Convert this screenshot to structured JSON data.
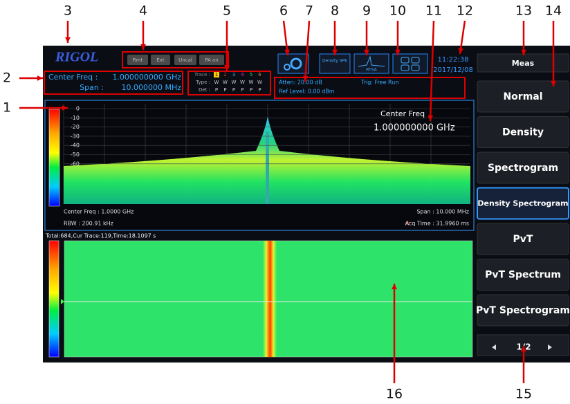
{
  "callouts": [
    "1",
    "2",
    "3",
    "4",
    "5",
    "6",
    "7",
    "8",
    "9",
    "10",
    "11",
    "12",
    "13",
    "14",
    "15",
    "16"
  ],
  "header": {
    "logo": "RIGOL",
    "status_buttons": [
      "Rmt",
      "Ext",
      "Uncal",
      "PA on"
    ],
    "center_freq_label": "Center Freq :",
    "center_freq_value": "1.000000000 GHz",
    "span_label": "Span :",
    "span_value": "10.000000 MHz",
    "trace": {
      "trace_label": "Trace :",
      "numbers": [
        "1",
        "2",
        "3",
        "4",
        "5",
        "6"
      ],
      "type_label": "Type :",
      "types": [
        "W",
        "W",
        "W",
        "W",
        "W",
        "W"
      ],
      "det_label": "Det :",
      "dets": [
        "P",
        "P",
        "P",
        "P",
        "P",
        "P"
      ]
    },
    "mode_icon": "Density SPE",
    "rtsa_icon": "RTSA",
    "atten": "Atten: 20.00 dB",
    "ref_level": "Ref Level: 0.00 dBm",
    "trig": "Trig: Free Run",
    "time": "11:22:38",
    "date": "2017/12/08"
  },
  "display": {
    "yticks": [
      "0",
      "-10",
      "-20",
      "-30",
      "-40",
      "-50",
      "-60"
    ],
    "marker_label": "Center Freq",
    "marker_value": "1.000000000 GHz",
    "footer_center": "Center Freq : 1.0000 GHz",
    "footer_span": "Span : 10.000 MHz",
    "footer_rbw": "RBW : 200.91 kHz",
    "footer_acq_flag": "#",
    "footer_acq": "Acq Time : 31.9960 ms",
    "spectrogram_status": "Total:684,Cur Trace:119,Time:18.1097 s"
  },
  "menu": {
    "title": "Meas",
    "items": [
      "Normal",
      "Density",
      "Spectrogram",
      "Density Spectrogram",
      "PvT",
      "PvT Spectrum",
      "PvT Spectrogram"
    ],
    "page": "1/2"
  }
}
